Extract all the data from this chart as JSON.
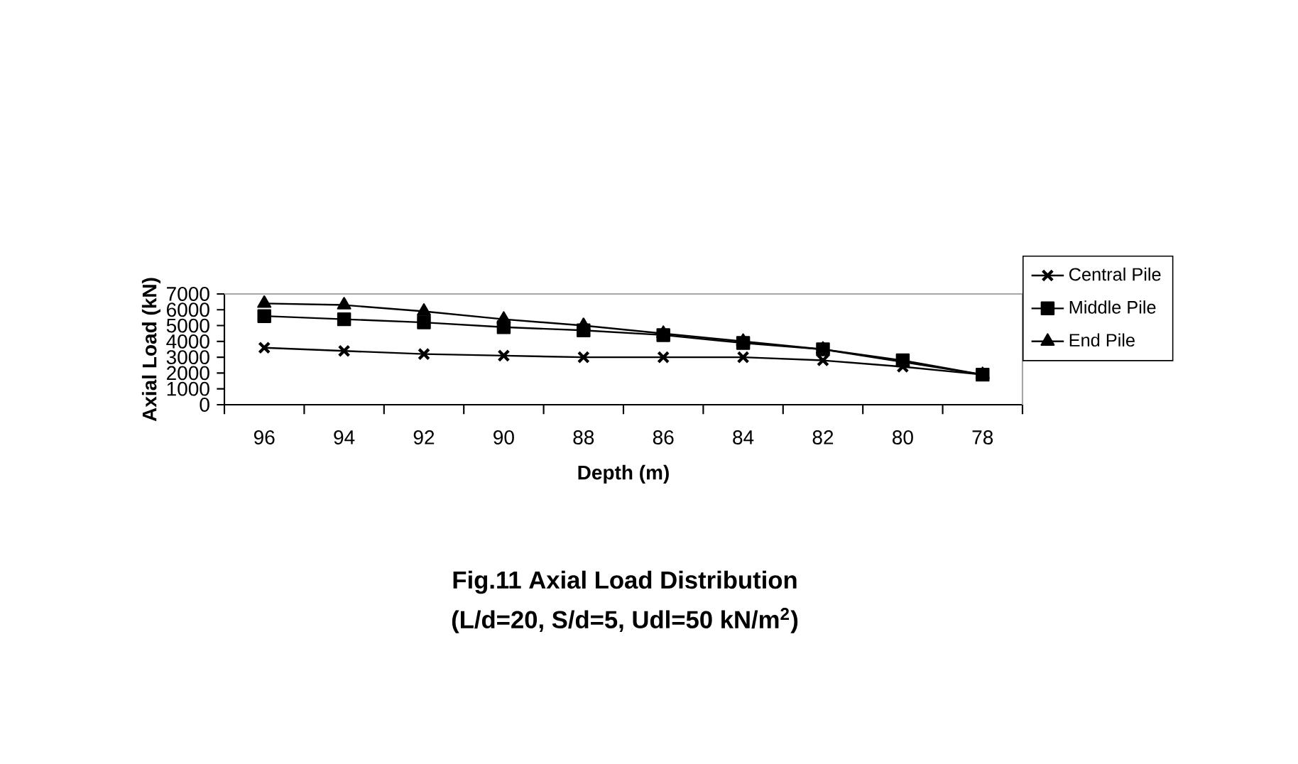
{
  "chart_data": {
    "type": "line",
    "title": "Fig.11 Axial Load Distribution",
    "subtitle": "(L/d=20, S/d=5, Udl=50 kN/m$^{2}$)",
    "xlabel": "Depth (m)",
    "ylabel": "Axial Load (kN)",
    "categories": [
      "96",
      "94",
      "92",
      "90",
      "88",
      "86",
      "84",
      "82",
      "80",
      "78"
    ],
    "series": [
      {
        "name": "Central Pile",
        "color": "#000000",
        "marker": "cross",
        "values": [
          3600,
          3400,
          3200,
          3100,
          3000,
          3000,
          3000,
          2800,
          2400,
          1900
        ]
      },
      {
        "name": "Middle Pile",
        "color": "#000000",
        "marker": "square",
        "values": [
          5600,
          5400,
          5200,
          4900,
          4700,
          4400,
          3900,
          3500,
          2800,
          1900
        ]
      },
      {
        "name": "End Pile",
        "color": "#000000",
        "marker": "triangle",
        "values": [
          6400,
          6300,
          5900,
          5400,
          5000,
          4500,
          4000,
          3500,
          2700,
          1900
        ]
      }
    ],
    "ylim": [
      0,
      7000
    ],
    "yticks": [
      0,
      1000,
      2000,
      3000,
      4000,
      5000,
      6000,
      7000
    ],
    "grid": false,
    "legend": "right",
    "line_style": "solid"
  }
}
